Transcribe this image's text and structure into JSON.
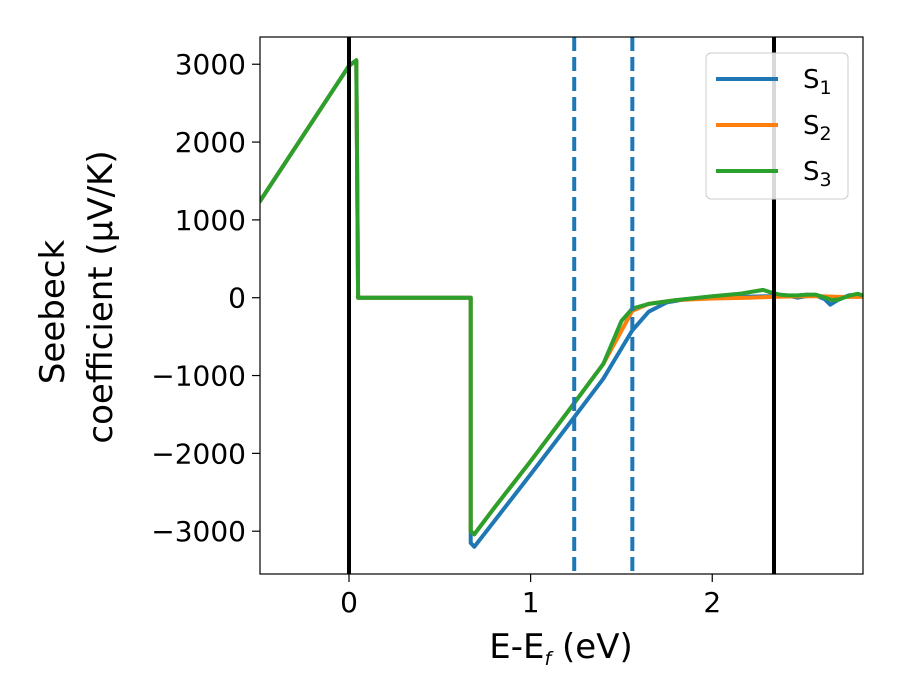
{
  "chart_data": {
    "type": "line",
    "xlabel": "E-E",
    "xlabel_sub": "f",
    "xlabel_unit": " (eV)",
    "ylabel_line1": "Seebeck",
    "ylabel_line2": "coefficient  (μV/K)",
    "xlim": [
      -0.49,
      2.83
    ],
    "ylim": [
      -3550,
      3350
    ],
    "x_ticks": [
      0,
      1,
      2
    ],
    "x_tick_labels": [
      "0",
      "1",
      "2"
    ],
    "y_ticks": [
      3000,
      2000,
      1000,
      0,
      -1000,
      -2000,
      -3000
    ],
    "y_tick_labels": [
      "3000",
      "2000",
      "1000",
      "0",
      "−1000",
      "−2000",
      "−3000"
    ],
    "grid": false,
    "legend_position": "top-right",
    "vlines": [
      {
        "x": 0.0,
        "style": "solid",
        "color": "#000000"
      },
      {
        "x": 2.34,
        "style": "solid",
        "color": "#000000"
      },
      {
        "x": 1.24,
        "style": "dashed",
        "color": "#1f77b4"
      },
      {
        "x": 1.56,
        "style": "dashed",
        "color": "#1f77b4"
      }
    ],
    "series": [
      {
        "name": "S",
        "sub": "1",
        "color": "#1f77b4",
        "points": [
          [
            -0.49,
            1240
          ],
          [
            0.0,
            2980
          ],
          [
            0.04,
            3050
          ],
          [
            0.05,
            0
          ],
          [
            0.67,
            0
          ],
          [
            0.67,
            -3150
          ],
          [
            0.69,
            -3200
          ],
          [
            0.8,
            -2870
          ],
          [
            1.0,
            -2270
          ],
          [
            1.2,
            -1660
          ],
          [
            1.4,
            -1040
          ],
          [
            1.56,
            -420
          ],
          [
            1.65,
            -180
          ],
          [
            1.75,
            -60
          ],
          [
            1.85,
            -20
          ],
          [
            2.0,
            0
          ],
          [
            2.2,
            15
          ],
          [
            2.34,
            20
          ],
          [
            2.42,
            25
          ],
          [
            2.47,
            0
          ],
          [
            2.52,
            20
          ],
          [
            2.57,
            30
          ],
          [
            2.62,
            -20
          ],
          [
            2.65,
            -90
          ],
          [
            2.69,
            -30
          ],
          [
            2.75,
            30
          ],
          [
            2.8,
            40
          ],
          [
            2.83,
            20
          ]
        ]
      },
      {
        "name": "S",
        "sub": "2",
        "color": "#ff7f0e",
        "points": [
          [
            -0.49,
            1240
          ],
          [
            0.0,
            2980
          ],
          [
            0.04,
            3050
          ],
          [
            0.05,
            0
          ],
          [
            0.67,
            0
          ],
          [
            0.67,
            -3000
          ],
          [
            0.69,
            -3040
          ],
          [
            0.8,
            -2700
          ],
          [
            1.0,
            -2100
          ],
          [
            1.2,
            -1480
          ],
          [
            1.4,
            -850
          ],
          [
            1.56,
            -170
          ],
          [
            1.65,
            -80
          ],
          [
            1.8,
            -30
          ],
          [
            2.0,
            -10
          ],
          [
            2.2,
            0
          ],
          [
            2.34,
            10
          ],
          [
            2.5,
            20
          ],
          [
            2.6,
            20
          ],
          [
            2.7,
            10
          ],
          [
            2.83,
            10
          ]
        ]
      },
      {
        "name": "S",
        "sub": "3",
        "color": "#2ca02c",
        "points": [
          [
            -0.49,
            1240
          ],
          [
            0.0,
            2980
          ],
          [
            0.04,
            3050
          ],
          [
            0.05,
            0
          ],
          [
            0.67,
            0
          ],
          [
            0.67,
            -3000
          ],
          [
            0.69,
            -3040
          ],
          [
            0.8,
            -2700
          ],
          [
            1.0,
            -2100
          ],
          [
            1.2,
            -1480
          ],
          [
            1.4,
            -850
          ],
          [
            1.5,
            -300
          ],
          [
            1.56,
            -140
          ],
          [
            1.65,
            -80
          ],
          [
            1.8,
            -30
          ],
          [
            2.0,
            20
          ],
          [
            2.15,
            50
          ],
          [
            2.28,
            100
          ],
          [
            2.32,
            70
          ],
          [
            2.37,
            40
          ],
          [
            2.42,
            30
          ],
          [
            2.47,
            30
          ],
          [
            2.52,
            40
          ],
          [
            2.57,
            40
          ],
          [
            2.62,
            0
          ],
          [
            2.66,
            -30
          ],
          [
            2.7,
            -20
          ],
          [
            2.76,
            30
          ],
          [
            2.8,
            50
          ],
          [
            2.83,
            30
          ]
        ]
      }
    ]
  }
}
